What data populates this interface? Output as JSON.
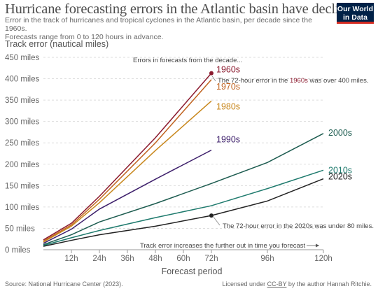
{
  "header": {
    "title": "Hurricane forecasting errors in the Atlantic basin have declined",
    "subtitle_line1": "Error in the track of hurricanes and tropical cyclones in the Atlantic basin, per decade since the 1960s.",
    "subtitle_line2": "Forecasts range from 0 to 120 hours in advance.",
    "logo_line1": "Our World",
    "logo_line2": "in Data"
  },
  "footer": {
    "source": "Source: National Hurricane Center (2023).",
    "license_prefix": "Licensed under ",
    "license_link": "CC-BY",
    "license_suffix": " by the author Hannah Ritchie."
  },
  "colors": {
    "1960s": "#8b1a2e",
    "1970s": "#c0621e",
    "1980s": "#c8871c",
    "1990s": "#3d1f6b",
    "2000s": "#1d5c50",
    "2010s": "#1e7a6d",
    "2020s": "#222222",
    "grid": "#dddddd",
    "axis_text": "#666666"
  },
  "chart_data": {
    "type": "line",
    "ylabel": "Track error (nautical miles)",
    "xlabel": "Forecast period",
    "x_ticks": [
      "12h",
      "24h",
      "36h",
      "48h",
      "60h",
      "72h",
      "96h",
      "120h"
    ],
    "x_tick_values": [
      12,
      24,
      36,
      48,
      60,
      72,
      96,
      120
    ],
    "y_ticks": [
      "0 miles",
      "50 miles",
      "100 miles",
      "150 miles",
      "200 miles",
      "250 miles",
      "300 miles",
      "350 miles",
      "400 miles",
      "450 miles"
    ],
    "y_tick_values": [
      0,
      50,
      100,
      150,
      200,
      250,
      300,
      350,
      400,
      450
    ],
    "xlim": [
      0,
      120
    ],
    "ylim": [
      0,
      450
    ],
    "grid": true,
    "series": [
      {
        "name": "1960s",
        "x": [
          0,
          12,
          24,
          48,
          72
        ],
        "y": [
          23,
          62,
          125,
          262,
          413
        ]
      },
      {
        "name": "1970s",
        "x": [
          0,
          12,
          24,
          48,
          72
        ],
        "y": [
          20,
          58,
          118,
          250,
          398
        ]
      },
      {
        "name": "1980s",
        "x": [
          0,
          12,
          24,
          48,
          72
        ],
        "y": [
          18,
          55,
          110,
          232,
          348
        ]
      },
      {
        "name": "1990s",
        "x": [
          0,
          12,
          24,
          48,
          72
        ],
        "y": [
          15,
          48,
          95,
          165,
          233
        ]
      },
      {
        "name": "2000s",
        "x": [
          0,
          12,
          24,
          48,
          72,
          96,
          120
        ],
        "y": [
          12,
          35,
          65,
          108,
          155,
          204,
          272
        ]
      },
      {
        "name": "2010s",
        "x": [
          0,
          12,
          24,
          48,
          72,
          96,
          120
        ],
        "y": [
          10,
          28,
          45,
          75,
          103,
          143,
          186
        ]
      },
      {
        "name": "2020s",
        "x": [
          0,
          12,
          24,
          48,
          72,
          96,
          120
        ],
        "y": [
          8,
          22,
          35,
          55,
          80,
          114,
          166
        ]
      }
    ],
    "annotations": {
      "top_note": "Errors in forecasts from the decade...",
      "note_1960s": "The 72-hour error in the ",
      "note_1960s_highlight": "1960s",
      "note_1960s_end": " was over 400 miles.",
      "note_2020s": "The 72-hour error in the 2020s was under 80 miles.",
      "bottom_note": "Track error increases the further out in time you forecast"
    }
  }
}
